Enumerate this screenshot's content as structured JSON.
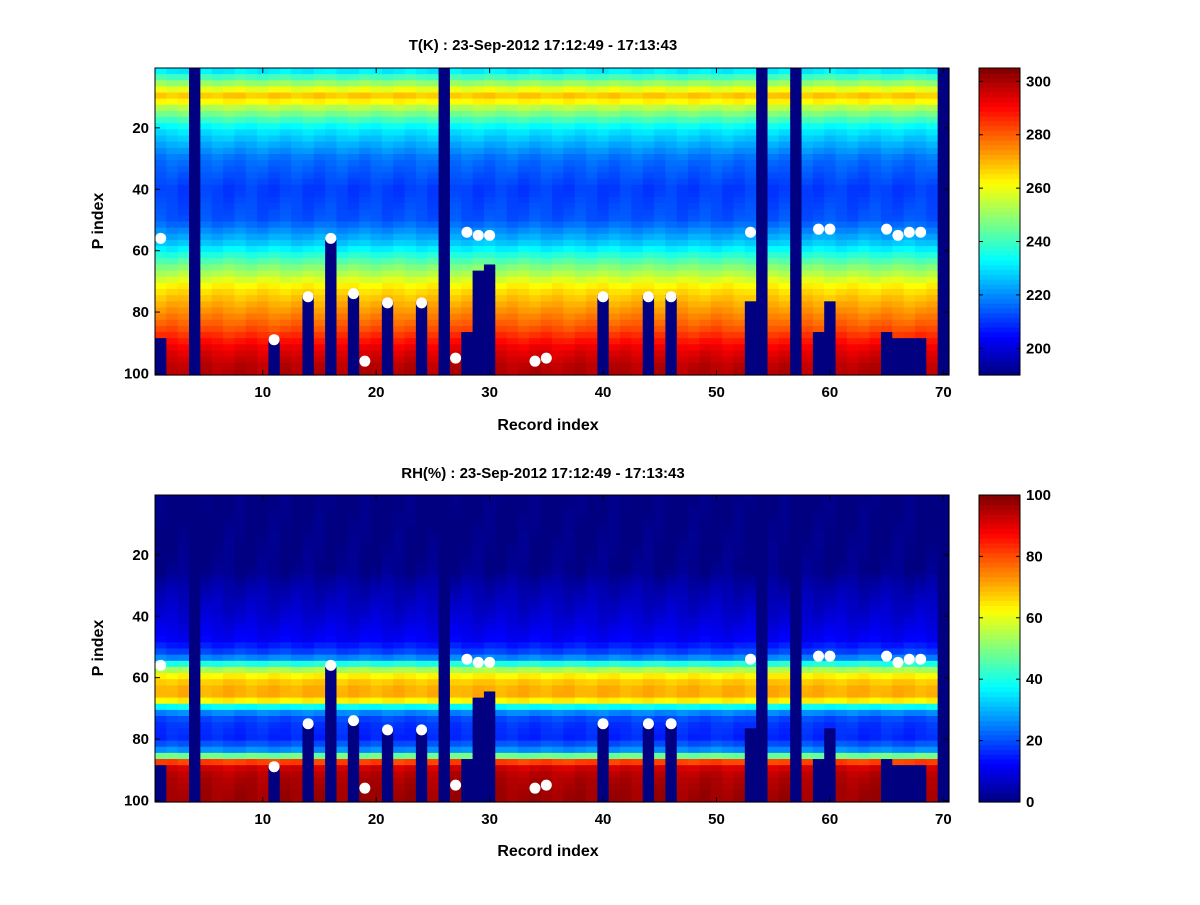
{
  "chart_data": [
    {
      "type": "heatmap",
      "title": "T(K) : 23-Sep-2012 17:12:49 - 17:13:43",
      "xlabel": "Record index",
      "ylabel": "P index",
      "xlim": [
        0.5,
        70.5
      ],
      "ylim": [
        0.5,
        100.5
      ],
      "y_reversed": true,
      "x_ticks": [
        10,
        20,
        30,
        40,
        50,
        60,
        70
      ],
      "x_tick_labels": [
        "10",
        "20",
        "30",
        "40",
        "50",
        "60",
        "70"
      ],
      "y_ticks": [
        20,
        40,
        60,
        80,
        100
      ],
      "y_tick_labels": [
        "20",
        "40",
        "60",
        "80",
        "100"
      ],
      "colorbar": {
        "colormap": "jet",
        "range": [
          190,
          305
        ],
        "ticks": [
          200,
          220,
          240,
          260,
          280,
          300
        ],
        "tick_labels": [
          "200",
          "220",
          "240",
          "260",
          "280",
          "300"
        ]
      },
      "profile_by_p_index": {
        "p": [
          1,
          5,
          8,
          10,
          13,
          20,
          30,
          40,
          50,
          58,
          65,
          72,
          78,
          85,
          92,
          98
        ],
        "value": [
          229,
          248,
          262,
          270,
          255,
          232,
          217,
          211,
          214,
          228,
          247,
          264,
          272,
          281,
          293,
          299
        ]
      },
      "fully_masked_records": [
        4,
        26,
        54,
        57,
        70
      ],
      "masked_from_p": {
        "1": 88,
        "11": 89,
        "14": 75,
        "16": 56,
        "18": 74,
        "21": 77,
        "24": 77,
        "28": 87,
        "29": 66,
        "30": 65,
        "40": 75,
        "44": 75,
        "46": 75,
        "53": 76,
        "59": 87,
        "60": 76,
        "65": 86,
        "66": 89,
        "67": 89,
        "68": 88
      },
      "marker_records": [
        1,
        11,
        14,
        16,
        18,
        19,
        21,
        24,
        27,
        28,
        29,
        30,
        34,
        35,
        40,
        44,
        46,
        53,
        59,
        60,
        65,
        66,
        67,
        68
      ],
      "marker_p_index": [
        56,
        89,
        75,
        56,
        74,
        96,
        77,
        77,
        95,
        54,
        55,
        55,
        96,
        95,
        75,
        75,
        75,
        54,
        53,
        53,
        53,
        55,
        54,
        54
      ]
    },
    {
      "type": "heatmap",
      "title": "RH(%) : 23-Sep-2012 17:12:49 - 17:13:43",
      "xlabel": "Record index",
      "ylabel": "P index",
      "xlim": [
        0.5,
        70.5
      ],
      "ylim": [
        0.5,
        100.5
      ],
      "y_reversed": true,
      "x_ticks": [
        10,
        20,
        30,
        40,
        50,
        60,
        70
      ],
      "x_tick_labels": [
        "10",
        "20",
        "30",
        "40",
        "50",
        "60",
        "70"
      ],
      "y_ticks": [
        20,
        40,
        60,
        80,
        100
      ],
      "y_tick_labels": [
        "20",
        "40",
        "60",
        "80",
        "100"
      ],
      "colorbar": {
        "colormap": "jet",
        "range": [
          0,
          100
        ],
        "ticks": [
          0,
          20,
          40,
          60,
          80,
          100
        ],
        "tick_labels": [
          "0",
          "20",
          "40",
          "60",
          "80",
          "100"
        ]
      },
      "profile_by_p_index": {
        "p": [
          1,
          25,
          30,
          40,
          48,
          53,
          57,
          60,
          65,
          68,
          70,
          74,
          80,
          84,
          86,
          88,
          92,
          98
        ],
        "value": [
          0,
          1,
          4,
          8,
          12,
          22,
          52,
          66,
          72,
          62,
          30,
          18,
          16,
          28,
          55,
          90,
          95,
          97
        ]
      },
      "fully_masked_records": [
        4,
        26,
        54,
        57,
        70
      ],
      "masked_from_p": {
        "1": 88,
        "11": 89,
        "14": 75,
        "16": 56,
        "18": 74,
        "21": 77,
        "24": 77,
        "28": 87,
        "29": 66,
        "30": 65,
        "40": 75,
        "44": 75,
        "46": 75,
        "53": 76,
        "59": 87,
        "60": 76,
        "65": 86,
        "66": 89,
        "67": 89,
        "68": 88
      },
      "marker_records": [
        1,
        11,
        14,
        16,
        18,
        19,
        21,
        24,
        27,
        28,
        29,
        30,
        34,
        35,
        40,
        44,
        46,
        53,
        59,
        60,
        65,
        66,
        67,
        68
      ],
      "marker_p_index": [
        56,
        89,
        75,
        56,
        74,
        96,
        77,
        77,
        95,
        54,
        55,
        55,
        96,
        95,
        75,
        75,
        75,
        54,
        53,
        53,
        53,
        55,
        54,
        54
      ]
    }
  ]
}
